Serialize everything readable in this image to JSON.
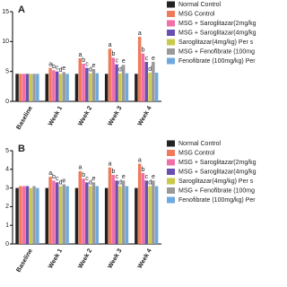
{
  "chart_data": [
    {
      "type": "bar",
      "title": "A",
      "categories": [
        "Baseline",
        "Week 1",
        "Week 2",
        "Week 3",
        "Week 4"
      ],
      "ylim": [
        0,
        15
      ],
      "yticks": [
        0,
        5,
        10,
        15
      ],
      "series": [
        {
          "name": "Normal Control",
          "color": "#222222",
          "values": [
            4.6,
            4.6,
            4.6,
            4.6,
            4.6
          ],
          "annotations": [
            null,
            null,
            null,
            null,
            null
          ]
        },
        {
          "name": "MSG Control",
          "color": "#f07a5a",
          "values": [
            4.6,
            5.6,
            7.2,
            8.8,
            10.8
          ],
          "annotations": [
            null,
            "a",
            "a",
            "a",
            "a"
          ]
        },
        {
          "name": "MSG + Saroglitazar(2mg/kg",
          "color": "#f06fa8",
          "values": [
            4.6,
            5.2,
            6.3,
            7.3,
            8.0
          ],
          "annotations": [
            null,
            "b",
            "b",
            "b",
            "b"
          ]
        },
        {
          "name": "MSG + Saroglitazar(4mg/kg",
          "color": "#6a4fb0",
          "values": [
            4.6,
            5.0,
            5.6,
            6.2,
            6.6
          ],
          "annotations": [
            null,
            "c",
            "c",
            "c",
            "c"
          ]
        },
        {
          "name": "Saroglitazar(4mg/kg) Per s",
          "color": "#c9c94a",
          "values": [
            4.6,
            4.6,
            4.7,
            4.7,
            4.8
          ],
          "annotations": [
            null,
            "d",
            "d",
            "d",
            "d"
          ]
        },
        {
          "name": "MSG + Fenofibrate (100mg",
          "color": "#9a9a9a",
          "values": [
            4.6,
            4.9,
            5.4,
            6.1,
            6.6
          ],
          "annotations": [
            null,
            "e",
            "e",
            "e",
            "e"
          ]
        },
        {
          "name": "Fenofibrate (100mg/kg) Per",
          "color": "#6fa8dc",
          "values": [
            4.6,
            4.6,
            4.7,
            4.7,
            4.8
          ],
          "annotations": [
            null,
            null,
            null,
            null,
            null
          ]
        }
      ]
    },
    {
      "type": "bar",
      "title": "B",
      "categories": [
        "Baseline",
        "Week 1",
        "Week 2",
        "Week 3",
        "Week 4"
      ],
      "ylim": [
        0,
        5
      ],
      "yticks": [
        0,
        1,
        2,
        3,
        4,
        5
      ],
      "series": [
        {
          "name": "Normal Control",
          "color": "#222222",
          "values": [
            3.0,
            3.0,
            3.0,
            3.0,
            3.0
          ],
          "annotations": [
            null,
            null,
            null,
            null,
            null
          ]
        },
        {
          "name": "MSG Control",
          "color": "#f07a5a",
          "values": [
            3.1,
            3.6,
            3.9,
            4.1,
            4.3
          ],
          "annotations": [
            null,
            "a",
            "a",
            "a",
            "a"
          ]
        },
        {
          "name": "MSG + Saroglitazar(2mg/kg",
          "color": "#f06fa8",
          "values": [
            3.1,
            3.4,
            3.5,
            3.7,
            3.8
          ],
          "annotations": [
            null,
            "b",
            "b",
            "b",
            "b"
          ]
        },
        {
          "name": "MSG + Saroglitazar(4mg/kg",
          "color": "#6a4fb0",
          "values": [
            3.1,
            3.3,
            3.3,
            3.4,
            3.4
          ],
          "annotations": [
            null,
            "c",
            "c",
            "c",
            "c"
          ]
        },
        {
          "name": "Saroglitazar(4mg/kg) Per s",
          "color": "#c9c94a",
          "values": [
            3.0,
            3.1,
            3.1,
            3.1,
            3.1
          ],
          "annotations": [
            null,
            "d",
            "d",
            "d",
            "d"
          ]
        },
        {
          "name": "MSG + Fenofibrate (100mg",
          "color": "#9a9a9a",
          "values": [
            3.1,
            3.2,
            3.3,
            3.4,
            3.4
          ],
          "annotations": [
            null,
            "e",
            "e",
            "e",
            "e"
          ]
        },
        {
          "name": "Fenofibrate (100mg/kg) Per",
          "color": "#6fa8dc",
          "values": [
            3.0,
            3.1,
            3.1,
            3.1,
            3.1
          ],
          "annotations": [
            null,
            null,
            null,
            null,
            null
          ]
        }
      ]
    }
  ]
}
